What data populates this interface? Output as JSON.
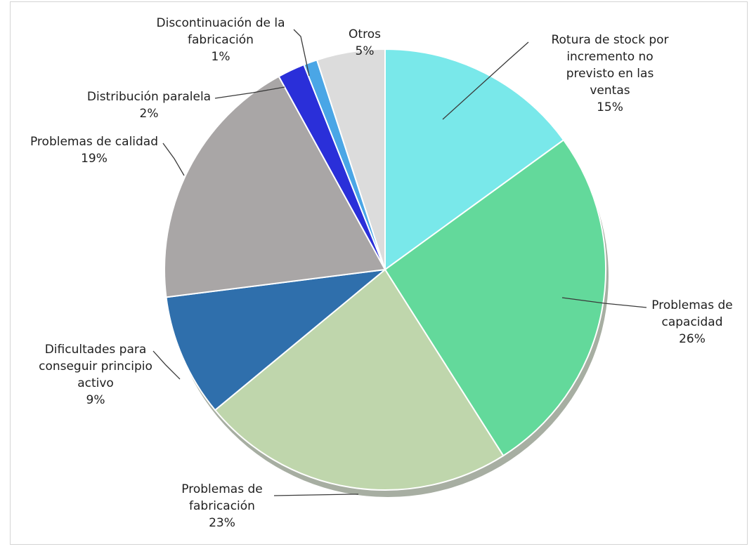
{
  "chart_data": {
    "type": "pie",
    "title": "",
    "slices": [
      {
        "label_lines": [
          "Rotura de stock por",
          "incremento no",
          "previsto en las",
          "ventas"
        ],
        "pct_text": "15%",
        "value": 15,
        "color": "#79e8ea"
      },
      {
        "label_lines": [
          "Problemas de",
          "capacidad"
        ],
        "pct_text": "26%",
        "value": 26,
        "color": "#63d99b"
      },
      {
        "label_lines": [
          "Problemas de",
          "fabricación"
        ],
        "pct_text": "23%",
        "value": 23,
        "color": "#bfd6ac"
      },
      {
        "label_lines": [
          "Dificultades para",
          "conseguir principio",
          "activo"
        ],
        "pct_text": "9%",
        "value": 9,
        "color": "#2f6fac"
      },
      {
        "label_lines": [
          "Problemas de calidad"
        ],
        "pct_text": "19%",
        "value": 19,
        "color": "#a9a6a6"
      },
      {
        "label_lines": [
          "Distribución paralela"
        ],
        "pct_text": "2%",
        "value": 2,
        "color": "#2a2fd9"
      },
      {
        "label_lines": [
          "Discontinuación de la",
          "fabricación"
        ],
        "pct_text": "1%",
        "value": 1,
        "color": "#4aa6e6"
      },
      {
        "label_lines": [
          "Otros"
        ],
        "pct_text": "5%",
        "value": 5,
        "color": "#dcdcdc"
      }
    ],
    "start_angle": "12 o'clock",
    "direction": "clockwise",
    "legend": "none (callout labels)"
  }
}
